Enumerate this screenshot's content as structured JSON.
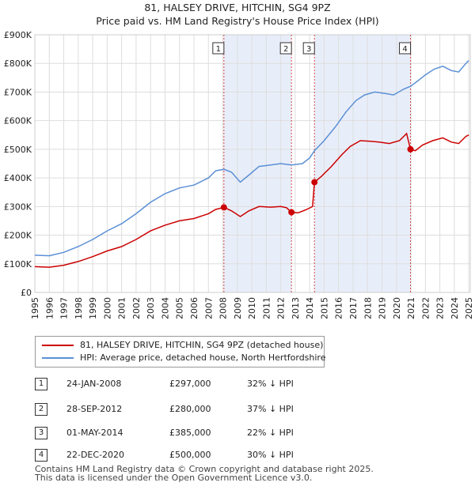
{
  "title_line1": "81, HALSEY DRIVE, HITCHIN, SG4 9PZ",
  "title_line2": "Price paid vs. HM Land Registry's House Price Index (HPI)",
  "colors": {
    "price_paid": "#cc0000",
    "hpi": "#5b8fd6",
    "shade": "#e8eef9",
    "grid": "#dddddd"
  },
  "chart_data": {
    "type": "line",
    "xlim": [
      1995,
      2025.1
    ],
    "ylim": [
      0,
      900000
    ],
    "y_ticks": [
      {
        "value": 0,
        "label": "£0"
      },
      {
        "value": 100000,
        "label": "£100K"
      },
      {
        "value": 200000,
        "label": "£200K"
      },
      {
        "value": 300000,
        "label": "£300K"
      },
      {
        "value": 400000,
        "label": "£400K"
      },
      {
        "value": 500000,
        "label": "£500K"
      },
      {
        "value": 600000,
        "label": "£600K"
      },
      {
        "value": 700000,
        "label": "£700K"
      },
      {
        "value": 800000,
        "label": "£800K"
      },
      {
        "value": 900000,
        "label": "£900K"
      }
    ],
    "x_ticks": [
      "1995",
      "1996",
      "1997",
      "1998",
      "1999",
      "2000",
      "2001",
      "2002",
      "2003",
      "2004",
      "2005",
      "2006",
      "2007",
      "2008",
      "2009",
      "2010",
      "2011",
      "2012",
      "2013",
      "2014",
      "2015",
      "2016",
      "2017",
      "2018",
      "2019",
      "2020",
      "2021",
      "2022",
      "2023",
      "2024",
      "2025"
    ],
    "shaded_ranges": [
      [
        2008.07,
        2012.74
      ],
      [
        2014.33,
        2020.97
      ]
    ],
    "series": [
      {
        "name": "81, HALSEY DRIVE, HITCHIN, SG4 9PZ (detached house)",
        "color": "#cc0000",
        "points": [
          [
            1995.0,
            90000
          ],
          [
            1996.0,
            88000
          ],
          [
            1997.0,
            95000
          ],
          [
            1998.0,
            108000
          ],
          [
            1999.0,
            125000
          ],
          [
            2000.0,
            145000
          ],
          [
            2001.0,
            160000
          ],
          [
            2002.0,
            185000
          ],
          [
            2003.0,
            215000
          ],
          [
            2004.0,
            235000
          ],
          [
            2005.0,
            250000
          ],
          [
            2006.0,
            258000
          ],
          [
            2007.0,
            275000
          ],
          [
            2007.5,
            290000
          ],
          [
            2008.07,
            297000
          ],
          [
            2008.6,
            285000
          ],
          [
            2009.2,
            265000
          ],
          [
            2009.8,
            285000
          ],
          [
            2010.5,
            300000
          ],
          [
            2011.3,
            298000
          ],
          [
            2012.0,
            300000
          ],
          [
            2012.4,
            296000
          ],
          [
            2012.74,
            280000
          ],
          [
            2013.2,
            278000
          ],
          [
            2013.8,
            290000
          ],
          [
            2014.2,
            300000
          ],
          [
            2014.33,
            385000
          ],
          [
            2014.8,
            405000
          ],
          [
            2015.5,
            440000
          ],
          [
            2016.2,
            480000
          ],
          [
            2016.8,
            510000
          ],
          [
            2017.5,
            530000
          ],
          [
            2018.2,
            528000
          ],
          [
            2018.8,
            525000
          ],
          [
            2019.5,
            520000
          ],
          [
            2020.2,
            530000
          ],
          [
            2020.7,
            555000
          ],
          [
            2020.97,
            500000
          ],
          [
            2021.3,
            495000
          ],
          [
            2021.8,
            515000
          ],
          [
            2022.5,
            530000
          ],
          [
            2023.2,
            540000
          ],
          [
            2023.8,
            525000
          ],
          [
            2024.3,
            520000
          ],
          [
            2024.8,
            545000
          ],
          [
            2025.0,
            550000
          ]
        ]
      },
      {
        "name": "HPI: Average price, detached house, North Hertfordshire",
        "color": "#5b8fd6",
        "points": [
          [
            1995.0,
            130000
          ],
          [
            1996.0,
            128000
          ],
          [
            1997.0,
            140000
          ],
          [
            1998.0,
            160000
          ],
          [
            1999.0,
            185000
          ],
          [
            2000.0,
            215000
          ],
          [
            2001.0,
            240000
          ],
          [
            2002.0,
            275000
          ],
          [
            2003.0,
            315000
          ],
          [
            2004.0,
            345000
          ],
          [
            2005.0,
            365000
          ],
          [
            2006.0,
            375000
          ],
          [
            2007.0,
            400000
          ],
          [
            2007.5,
            425000
          ],
          [
            2008.07,
            430000
          ],
          [
            2008.6,
            420000
          ],
          [
            2009.2,
            385000
          ],
          [
            2009.8,
            410000
          ],
          [
            2010.5,
            440000
          ],
          [
            2011.3,
            445000
          ],
          [
            2012.0,
            450000
          ],
          [
            2012.74,
            445000
          ],
          [
            2013.5,
            450000
          ],
          [
            2014.0,
            470000
          ],
          [
            2014.33,
            495000
          ],
          [
            2015.0,
            530000
          ],
          [
            2015.8,
            580000
          ],
          [
            2016.5,
            630000
          ],
          [
            2017.2,
            670000
          ],
          [
            2017.8,
            690000
          ],
          [
            2018.5,
            700000
          ],
          [
            2019.2,
            695000
          ],
          [
            2019.8,
            690000
          ],
          [
            2020.5,
            710000
          ],
          [
            2020.97,
            720000
          ],
          [
            2021.5,
            740000
          ],
          [
            2022.0,
            760000
          ],
          [
            2022.6,
            780000
          ],
          [
            2023.2,
            790000
          ],
          [
            2023.8,
            775000
          ],
          [
            2024.3,
            770000
          ],
          [
            2024.8,
            800000
          ],
          [
            2025.0,
            810000
          ]
        ]
      }
    ],
    "markers": [
      {
        "label": "1",
        "x": 2008.07,
        "y": 297000
      },
      {
        "label": "2",
        "x": 2012.74,
        "y": 280000
      },
      {
        "label": "3",
        "x": 2014.33,
        "y": 385000
      },
      {
        "label": "4",
        "x": 2020.97,
        "y": 500000
      }
    ]
  },
  "legend": {
    "price_paid": "81, HALSEY DRIVE, HITCHIN, SG4 9PZ (detached house)",
    "hpi": "HPI: Average price, detached house, North Hertfordshire"
  },
  "sales": [
    {
      "num": "1",
      "date": "24-JAN-2008",
      "price": "£297,000",
      "hpi": "32% ↓ HPI"
    },
    {
      "num": "2",
      "date": "28-SEP-2012",
      "price": "£280,000",
      "hpi": "37% ↓ HPI"
    },
    {
      "num": "3",
      "date": "01-MAY-2014",
      "price": "£385,000",
      "hpi": "22% ↓ HPI"
    },
    {
      "num": "4",
      "date": "22-DEC-2020",
      "price": "£500,000",
      "hpi": "30% ↓ HPI"
    }
  ],
  "footer": {
    "line1": "Contains HM Land Registry data © Crown copyright and database right 2025.",
    "line2": "This data is licensed under the Open Government Licence v3.0."
  }
}
